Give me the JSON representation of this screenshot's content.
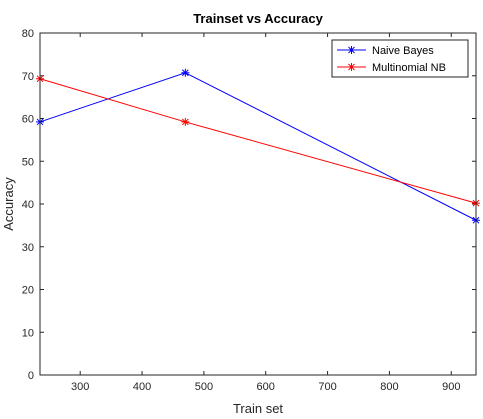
{
  "chart_data": {
    "type": "line",
    "title": "Trainset vs Accuracy",
    "xlabel": "Train set",
    "ylabel": "Accuracy",
    "xlim": [
      235,
      940
    ],
    "ylim": [
      0,
      80
    ],
    "xticks": [
      300,
      400,
      500,
      600,
      700,
      800,
      900
    ],
    "yticks": [
      0,
      10,
      20,
      30,
      40,
      50,
      60,
      70,
      80
    ],
    "grid": false,
    "legend_position": "top-right",
    "series": [
      {
        "name": "Naive Bayes",
        "color": "#0000ff",
        "marker": "asterisk",
        "x": [
          235,
          470,
          940
        ],
        "y": [
          59.2,
          70.7,
          36.2
        ]
      },
      {
        "name": "Multinomial NB",
        "color": "#ff0000",
        "marker": "asterisk",
        "x": [
          235,
          470,
          940
        ],
        "y": [
          69.3,
          59.2,
          40.2
        ]
      }
    ]
  }
}
